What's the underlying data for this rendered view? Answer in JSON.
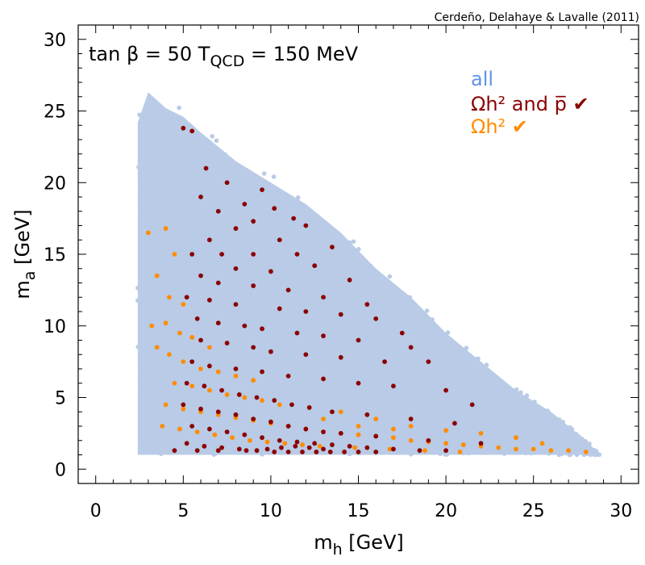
{
  "chart_data": {
    "type": "scatter",
    "credit": "Cerdeño, Delahaye & Lavalle (2011)",
    "annotation": {
      "main": "tan β = 50  T",
      "subscript": "QCD",
      "rest": " = 150 MeV"
    },
    "xlabel": {
      "main": "m",
      "sub": "h",
      "rest": " [GeV]"
    },
    "ylabel": {
      "main": "m",
      "sub": "a",
      "rest": " [GeV]"
    },
    "xlim": [
      -1,
      31
    ],
    "ylim": [
      -1,
      31
    ],
    "x_ticks": [
      0,
      5,
      10,
      15,
      20,
      25,
      30
    ],
    "x_tick_labels": [
      "0",
      "5",
      "10",
      "15",
      "20",
      "25",
      "30"
    ],
    "y_ticks": [
      0,
      5,
      10,
      15,
      20,
      25,
      30
    ],
    "y_tick_labels": [
      "0",
      "5",
      "10",
      "15",
      "20",
      "25",
      "30"
    ],
    "grid": false,
    "legend_position": "top-right",
    "region_all": {
      "description_points": [
        [
          2.4,
          1.0
        ],
        [
          2.4,
          24.2
        ],
        [
          3.0,
          26.3
        ],
        [
          4.0,
          25.2
        ],
        [
          5.0,
          24.6
        ],
        [
          6.0,
          23.5
        ],
        [
          8.0,
          21.5
        ],
        [
          10.0,
          20.0
        ],
        [
          12.0,
          18.5
        ],
        [
          14.0,
          16.5
        ],
        [
          16.0,
          14.0
        ],
        [
          18.0,
          12.0
        ],
        [
          20.0,
          9.5
        ],
        [
          22.0,
          7.5
        ],
        [
          24.0,
          5.5
        ],
        [
          26.0,
          4.0
        ],
        [
          28.0,
          2.0
        ],
        [
          28.8,
          1.0
        ]
      ]
    },
    "series": [
      {
        "name": "all",
        "color": "#b9cbe6",
        "count": 0,
        "note_points": []
      },
      {
        "name": "Ωh² and p̅ ✔",
        "color": "#8b0000",
        "points": [
          [
            5.0,
            23.8
          ],
          [
            5.5,
            23.6
          ],
          [
            6.3,
            21.0
          ],
          [
            7.5,
            20.0
          ],
          [
            6.0,
            19.0
          ],
          [
            7.0,
            18.0
          ],
          [
            8.5,
            18.5
          ],
          [
            9.5,
            19.5
          ],
          [
            10.2,
            18.2
          ],
          [
            11.3,
            17.5
          ],
          [
            9.0,
            17.3
          ],
          [
            12.0,
            17.0
          ],
          [
            8.0,
            16.8
          ],
          [
            6.5,
            16.0
          ],
          [
            10.5,
            16.0
          ],
          [
            13.5,
            15.5
          ],
          [
            5.5,
            15.0
          ],
          [
            7.2,
            15.0
          ],
          [
            9.0,
            15.0
          ],
          [
            11.5,
            15.0
          ],
          [
            12.5,
            14.2
          ],
          [
            8.0,
            14.0
          ],
          [
            10.0,
            13.8
          ],
          [
            14.5,
            13.2
          ],
          [
            6.0,
            13.5
          ],
          [
            7.0,
            13.0
          ],
          [
            9.0,
            12.8
          ],
          [
            11.0,
            12.5
          ],
          [
            13.0,
            12.0
          ],
          [
            15.5,
            11.5
          ],
          [
            5.2,
            12.0
          ],
          [
            6.5,
            11.8
          ],
          [
            8.0,
            11.5
          ],
          [
            10.5,
            11.2
          ],
          [
            12.0,
            11.0
          ],
          [
            14.0,
            10.8
          ],
          [
            16.0,
            10.5
          ],
          [
            17.5,
            9.5
          ],
          [
            5.8,
            10.5
          ],
          [
            7.0,
            10.2
          ],
          [
            8.5,
            10.0
          ],
          [
            9.5,
            9.8
          ],
          [
            11.5,
            9.5
          ],
          [
            13.0,
            9.3
          ],
          [
            15.0,
            9.0
          ],
          [
            18.0,
            8.5
          ],
          [
            19.0,
            7.5
          ],
          [
            6.0,
            9.0
          ],
          [
            7.5,
            8.8
          ],
          [
            9.0,
            8.5
          ],
          [
            10.0,
            8.2
          ],
          [
            12.0,
            8.0
          ],
          [
            14.0,
            7.8
          ],
          [
            16.5,
            7.5
          ],
          [
            5.5,
            7.5
          ],
          [
            6.5,
            7.2
          ],
          [
            8.0,
            7.0
          ],
          [
            9.5,
            6.8
          ],
          [
            11.0,
            6.5
          ],
          [
            13.0,
            6.3
          ],
          [
            15.0,
            6.0
          ],
          [
            17.0,
            5.8
          ],
          [
            20.0,
            5.5
          ],
          [
            21.5,
            4.5
          ],
          [
            5.2,
            6.0
          ],
          [
            6.2,
            5.8
          ],
          [
            7.2,
            5.5
          ],
          [
            8.2,
            5.2
          ],
          [
            9.2,
            5.0
          ],
          [
            10.2,
            4.8
          ],
          [
            11.2,
            4.5
          ],
          [
            12.2,
            4.3
          ],
          [
            13.5,
            4.0
          ],
          [
            15.5,
            3.8
          ],
          [
            18.0,
            3.5
          ],
          [
            20.5,
            3.2
          ],
          [
            5.0,
            4.5
          ],
          [
            6.0,
            4.2
          ],
          [
            7.0,
            4.0
          ],
          [
            8.0,
            3.8
          ],
          [
            9.0,
            3.5
          ],
          [
            10.0,
            3.3
          ],
          [
            11.0,
            3.0
          ],
          [
            12.0,
            2.8
          ],
          [
            13.0,
            2.6
          ],
          [
            14.0,
            2.5
          ],
          [
            16.0,
            2.3
          ],
          [
            19.0,
            2.0
          ],
          [
            22.0,
            1.8
          ],
          [
            5.5,
            3.0
          ],
          [
            6.5,
            2.8
          ],
          [
            7.5,
            2.6
          ],
          [
            8.5,
            2.4
          ],
          [
            9.5,
            2.2
          ],
          [
            10.5,
            2.0
          ],
          [
            11.5,
            1.9
          ],
          [
            12.5,
            1.8
          ],
          [
            13.5,
            1.7
          ],
          [
            14.5,
            1.6
          ],
          [
            15.5,
            1.5
          ],
          [
            17.0,
            1.4
          ],
          [
            18.5,
            1.3
          ],
          [
            20.0,
            1.3
          ],
          [
            5.2,
            1.8
          ],
          [
            6.2,
            1.6
          ],
          [
            7.2,
            1.5
          ],
          [
            8.2,
            1.4
          ],
          [
            9.2,
            1.3
          ],
          [
            10.2,
            1.2
          ],
          [
            11.0,
            1.2
          ],
          [
            11.8,
            1.2
          ],
          [
            12.6,
            1.2
          ],
          [
            13.4,
            1.2
          ],
          [
            14.2,
            1.2
          ],
          [
            15.0,
            1.2
          ],
          [
            16.0,
            1.2
          ],
          [
            4.5,
            1.3
          ],
          [
            5.8,
            1.3
          ],
          [
            7.0,
            1.3
          ],
          [
            8.6,
            1.3
          ],
          [
            9.8,
            1.4
          ],
          [
            10.6,
            1.5
          ],
          [
            11.4,
            1.6
          ],
          [
            12.2,
            1.5
          ],
          [
            13.0,
            1.4
          ]
        ]
      },
      {
        "name": "Ωh² ✔",
        "color": "#ff8c00",
        "points": [
          [
            3.0,
            16.5
          ],
          [
            4.0,
            16.8
          ],
          [
            4.5,
            15.0
          ],
          [
            3.5,
            13.5
          ],
          [
            4.2,
            12.0
          ],
          [
            5.0,
            11.5
          ],
          [
            3.2,
            10.0
          ],
          [
            4.0,
            10.2
          ],
          [
            4.8,
            9.5
          ],
          [
            5.5,
            9.2
          ],
          [
            6.5,
            8.5
          ],
          [
            3.5,
            8.5
          ],
          [
            4.2,
            8.0
          ],
          [
            5.0,
            7.5
          ],
          [
            6.0,
            7.0
          ],
          [
            7.0,
            6.8
          ],
          [
            8.0,
            6.5
          ],
          [
            9.0,
            6.2
          ],
          [
            4.5,
            6.0
          ],
          [
            5.5,
            5.8
          ],
          [
            6.5,
            5.5
          ],
          [
            7.5,
            5.2
          ],
          [
            8.5,
            5.0
          ],
          [
            9.5,
            4.8
          ],
          [
            10.5,
            4.5
          ],
          [
            4.0,
            4.5
          ],
          [
            5.0,
            4.2
          ],
          [
            6.0,
            4.0
          ],
          [
            7.0,
            3.8
          ],
          [
            8.0,
            3.6
          ],
          [
            9.0,
            3.4
          ],
          [
            10.0,
            3.2
          ],
          [
            11.0,
            3.0
          ],
          [
            12.0,
            2.8
          ],
          [
            13.0,
            2.6
          ],
          [
            14.0,
            2.5
          ],
          [
            15.0,
            2.4
          ],
          [
            16.0,
            2.3
          ],
          [
            17.0,
            2.2
          ],
          [
            18.0,
            2.0
          ],
          [
            19.0,
            1.9
          ],
          [
            20.0,
            1.8
          ],
          [
            21.0,
            1.7
          ],
          [
            22.0,
            1.6
          ],
          [
            23.0,
            1.5
          ],
          [
            24.0,
            1.4
          ],
          [
            25.0,
            1.4
          ],
          [
            26.0,
            1.3
          ],
          [
            27.0,
            1.3
          ],
          [
            28.0,
            1.2
          ],
          [
            3.8,
            3.0
          ],
          [
            4.8,
            2.8
          ],
          [
            5.8,
            2.6
          ],
          [
            6.8,
            2.4
          ],
          [
            7.8,
            2.2
          ],
          [
            8.8,
            2.0
          ],
          [
            9.8,
            1.9
          ],
          [
            10.8,
            1.8
          ],
          [
            11.8,
            1.7
          ],
          [
            12.8,
            1.6
          ],
          [
            14.8,
            1.5
          ],
          [
            16.8,
            1.4
          ],
          [
            18.8,
            1.3
          ],
          [
            20.8,
            1.2
          ],
          [
            14.0,
            4.0
          ],
          [
            16.0,
            3.5
          ],
          [
            18.0,
            3.0
          ],
          [
            20.0,
            2.7
          ],
          [
            22.0,
            2.5
          ],
          [
            24.0,
            2.2
          ],
          [
            25.5,
            1.8
          ],
          [
            13.0,
            3.5
          ],
          [
            15.0,
            3.0
          ],
          [
            17.0,
            2.8
          ]
        ]
      }
    ]
  }
}
